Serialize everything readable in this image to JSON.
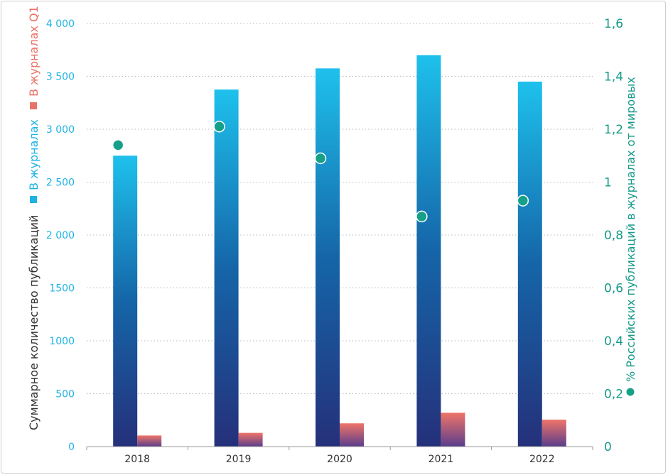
{
  "chart_data": {
    "type": "bar",
    "categories": [
      "2018",
      "2019",
      "2020",
      "2021",
      "2022"
    ],
    "series": [
      {
        "name": "В журналах",
        "axis": "left",
        "values": [
          2750,
          3375,
          3575,
          3700,
          3450
        ]
      },
      {
        "name": "В журналах Q1",
        "axis": "left",
        "values": [
          105,
          130,
          220,
          320,
          255
        ]
      },
      {
        "name": "% Российских публикаций в журналах от мировых",
        "type": "scatter",
        "axis": "right",
        "values": [
          1.14,
          1.21,
          1.09,
          0.87,
          0.93
        ]
      }
    ],
    "ylabel_left": "Суммарное количество публикаций",
    "ylabel_right": "% Российских публикаций в журналах от мировых",
    "ylim_left": [
      0,
      4000
    ],
    "ylim_right": [
      0,
      1.6
    ],
    "yticks_left": [
      {
        "value": 0,
        "label": "0"
      },
      {
        "value": 500,
        "label": "500"
      },
      {
        "value": 1000,
        "label": "1000"
      },
      {
        "value": 1500,
        "label": "1500"
      },
      {
        "value": 2000,
        "label": "2 000"
      },
      {
        "value": 2500,
        "label": "2 500"
      },
      {
        "value": 3000,
        "label": "3 000"
      },
      {
        "value": 3500,
        "label": "3 500"
      },
      {
        "value": 4000,
        "label": "4 000"
      }
    ],
    "yticks_right": [
      {
        "value": 0,
        "label": "0"
      },
      {
        "value": 0.2,
        "label": "0,2"
      },
      {
        "value": 0.4,
        "label": "0,4"
      },
      {
        "value": 0.6,
        "label": "0,6"
      },
      {
        "value": 0.8,
        "label": "0,8"
      },
      {
        "value": 1.0,
        "label": "1"
      },
      {
        "value": 1.2,
        "label": "1,2"
      },
      {
        "value": 1.4,
        "label": "1,4"
      },
      {
        "value": 1.6,
        "label": "1,6"
      }
    ],
    "grid": "horizontal dotted",
    "legend_position": "left (rotated, beside left axis)",
    "colors": {
      "bar_main_top": "#1ec1ec",
      "bar_main_mid": "#1565a8",
      "bar_main_bottom": "#25307a",
      "bar_q1_top": "#ef7468",
      "bar_q1_bottom": "#5a3d8c",
      "dot": "#16a08a",
      "left_ticks": "#1fb3e2",
      "right_ticks": "#169a88",
      "q1_legend": "#e87266"
    }
  }
}
